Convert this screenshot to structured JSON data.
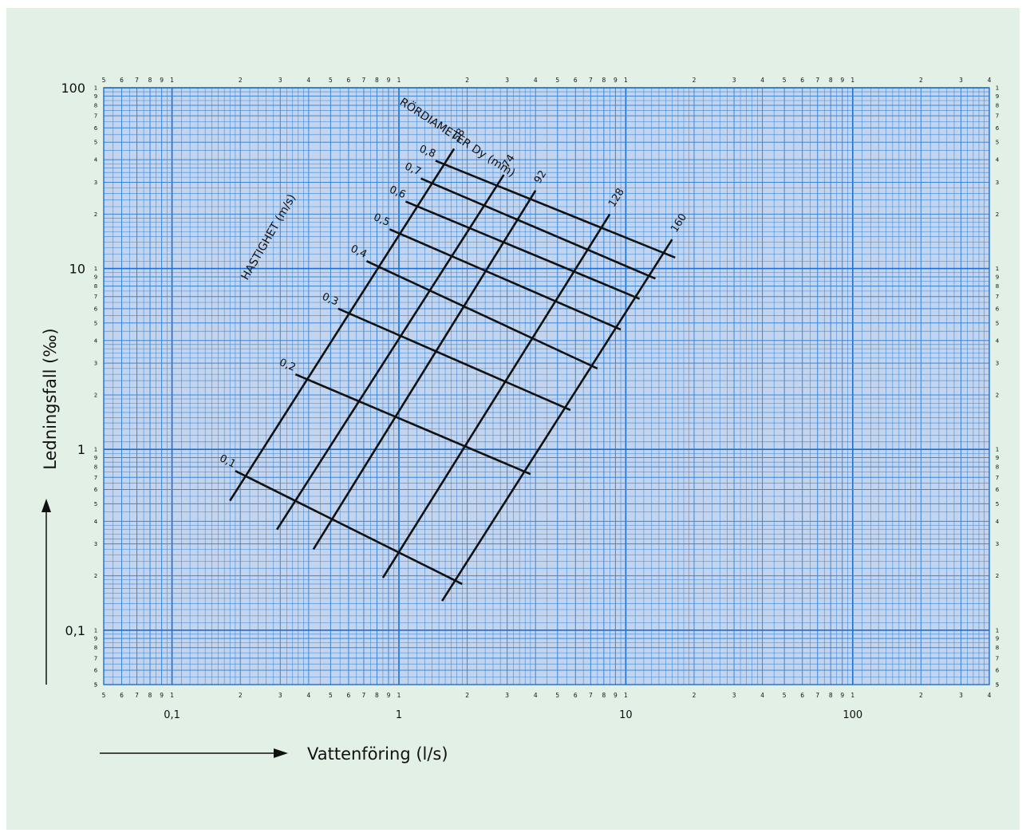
{
  "chart_data": {
    "type": "nomogram",
    "x_axis": {
      "title": "Vattenföring (l/s)",
      "scale": "log",
      "range": [
        0.05,
        400
      ],
      "major_labels": [
        "0,1",
        "1",
        "10",
        "100"
      ],
      "major_values": [
        0.1,
        1,
        10,
        100
      ],
      "minor_digits": [
        "5",
        "6",
        "7",
        "8",
        "9",
        "1",
        "2",
        "3",
        "4",
        "5",
        "6",
        "7",
        "8",
        "9",
        "1",
        "2",
        "3",
        "4",
        "5",
        "6",
        "7",
        "8",
        "9",
        "1",
        "2",
        "3",
        "4",
        "5",
        "6",
        "7",
        "8",
        "9",
        "1",
        "2",
        "3",
        "4"
      ]
    },
    "y_axis": {
      "title": "Ledningsfall (‰)",
      "scale": "log",
      "range": [
        0.05,
        100
      ],
      "major_labels": [
        "100",
        "10",
        "1",
        "0,1"
      ],
      "major_values": [
        100,
        10,
        1,
        0.1
      ],
      "minor_digits_per_decade": [
        "1",
        "9",
        "8",
        "7",
        "6",
        "5",
        "4",
        "3",
        "2"
      ],
      "bottom_digit": "5"
    },
    "grid": true,
    "nomogram": {
      "diameter_title": "RÖRDIAMETER Dy (mm)",
      "velocity_title": "HASTIGHET (m/s)",
      "diameters_mm": [
        {
          "label": "58",
          "q_start": 0.18,
          "h_start": 0.52,
          "q_end": 1.75,
          "h_end": 46
        },
        {
          "label": "74",
          "q_start": 0.29,
          "h_start": 0.36,
          "q_end": 2.9,
          "h_end": 33
        },
        {
          "label": "92",
          "q_start": 0.42,
          "h_start": 0.28,
          "q_end": 4.0,
          "h_end": 27
        },
        {
          "label": "128",
          "q_start": 0.85,
          "h_start": 0.195,
          "q_end": 8.5,
          "h_end": 20
        },
        {
          "label": "160",
          "q_start": 1.55,
          "h_start": 0.145,
          "q_end": 16,
          "h_end": 14.5
        }
      ],
      "velocities_m_s": [
        {
          "label": "0,1",
          "q_start": 0.19,
          "h_start": 0.76,
          "q_end": 1.9,
          "h_end": 0.18
        },
        {
          "label": "0,2",
          "q_start": 0.35,
          "h_start": 2.6,
          "q_end": 3.8,
          "h_end": 0.73
        },
        {
          "label": "0,3",
          "q_start": 0.54,
          "h_start": 6.0,
          "q_end": 5.7,
          "h_end": 1.65
        },
        {
          "label": "0,4",
          "q_start": 0.72,
          "h_start": 11.0,
          "q_end": 7.5,
          "h_end": 2.8
        },
        {
          "label": "0,5",
          "q_start": 0.91,
          "h_start": 16.5,
          "q_end": 9.5,
          "h_end": 4.6
        },
        {
          "label": "0,6",
          "q_start": 1.07,
          "h_start": 23.5,
          "q_end": 11.5,
          "h_end": 6.8
        },
        {
          "label": "0,7",
          "q_start": 1.25,
          "h_start": 31.5,
          "q_end": 13.5,
          "h_end": 8.8
        },
        {
          "label": "0,8",
          "q_start": 1.45,
          "h_start": 39.5,
          "q_end": 16.5,
          "h_end": 11.5
        }
      ]
    }
  },
  "colors": {
    "background": "#e3f0e6",
    "plot_fill": "#c3d5ee",
    "grid_minor": "#3b86d6",
    "grid_major": "#1a6fd0",
    "ink": "#111111"
  }
}
